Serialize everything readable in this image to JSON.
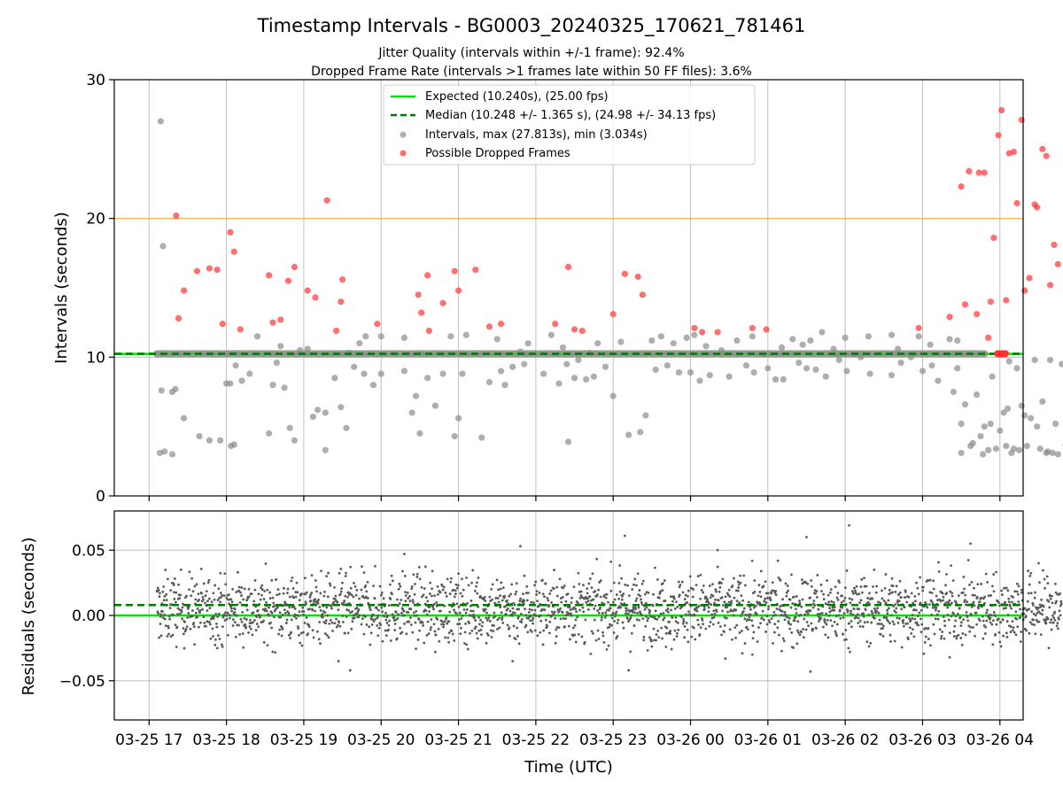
{
  "chart_data": {
    "type": "scatter",
    "title": "Timestamp Intervals - BG0003_20240325_170621_781461",
    "subtitle_lines": [
      "Jitter Quality (intervals within +/-1 frame): 92.4%",
      "Dropped Frame Rate (intervals >1 frames late within 50 FF files): 3.6%"
    ],
    "xlabel": "Time (UTC)",
    "x_tick_labels": [
      "03-25 17",
      "03-25 18",
      "03-25 19",
      "03-25 20",
      "03-25 21",
      "03-25 22",
      "03-25 23",
      "03-26 00",
      "03-26 01",
      "03-26 02",
      "03-26 03",
      "03-26 04"
    ],
    "x_range_hours": [
      16.55,
      28.3
    ],
    "colors": {
      "expected": "#00e600",
      "median": "#007700",
      "intervals": "#8c8c8c",
      "dropped": "#ff3333",
      "threshold": "#ffb84d",
      "residuals": "#5a5a5a"
    },
    "legend": {
      "placement": "top-center",
      "entries": [
        "Expected (10.240s), (25.00 fps)",
        "Median (10.248 +/- 1.365 s), (24.98 +/- 34.13 fps)",
        "Intervals, max (27.813s), min (3.034s)",
        "Possible Dropped Frames"
      ]
    },
    "top_panel": {
      "ylabel": "Intervals (seconds)",
      "ylim": [
        0,
        30
      ],
      "y_ticks": [
        "0",
        "10",
        "20",
        "30"
      ],
      "expected_line": 10.24,
      "median_line": 10.248,
      "threshold_line": 20,
      "baseline_band": {
        "x_start": 17.1,
        "x_end": 27.8,
        "y": 10.248
      },
      "intervals": [
        [
          17.15,
          27.0
        ],
        [
          17.18,
          18.0
        ],
        [
          17.16,
          7.6
        ],
        [
          17.14,
          3.1
        ],
        [
          17.2,
          3.2
        ],
        [
          17.3,
          7.5
        ],
        [
          17.34,
          7.7
        ],
        [
          17.3,
          3.0
        ],
        [
          17.45,
          5.6
        ],
        [
          17.65,
          4.3
        ],
        [
          17.78,
          4.0
        ],
        [
          17.92,
          4.0
        ],
        [
          18.0,
          8.1
        ],
        [
          18.05,
          8.1
        ],
        [
          18.06,
          3.6
        ],
        [
          18.1,
          3.7
        ],
        [
          18.12,
          9.4
        ],
        [
          18.2,
          8.3
        ],
        [
          18.3,
          8.8
        ],
        [
          18.4,
          11.5
        ],
        [
          18.55,
          4.5
        ],
        [
          18.6,
          8.0
        ],
        [
          18.65,
          9.6
        ],
        [
          18.7,
          10.8
        ],
        [
          18.75,
          7.8
        ],
        [
          18.82,
          4.9
        ],
        [
          18.88,
          4.0
        ],
        [
          18.95,
          10.5
        ],
        [
          19.05,
          10.6
        ],
        [
          19.12,
          5.7
        ],
        [
          19.18,
          6.2
        ],
        [
          19.28,
          6.0
        ],
        [
          19.28,
          3.3
        ],
        [
          19.4,
          8.5
        ],
        [
          19.48,
          6.4
        ],
        [
          19.55,
          4.9
        ],
        [
          19.58,
          10.3
        ],
        [
          19.65,
          9.3
        ],
        [
          19.72,
          11.0
        ],
        [
          19.78,
          8.8
        ],
        [
          19.8,
          11.5
        ],
        [
          19.9,
          8.0
        ],
        [
          20.0,
          11.5
        ],
        [
          20.0,
          8.8
        ],
        [
          20.3,
          11.4
        ],
        [
          20.3,
          9.0
        ],
        [
          20.4,
          6.0
        ],
        [
          20.45,
          7.2
        ],
        [
          20.5,
          4.5
        ],
        [
          20.6,
          8.5
        ],
        [
          20.7,
          6.5
        ],
        [
          20.8,
          8.8
        ],
        [
          20.9,
          11.5
        ],
        [
          20.95,
          4.3
        ],
        [
          21.0,
          5.6
        ],
        [
          21.05,
          8.8
        ],
        [
          21.1,
          11.6
        ],
        [
          21.3,
          4.2
        ],
        [
          21.4,
          8.2
        ],
        [
          21.5,
          11.3
        ],
        [
          21.55,
          9.0
        ],
        [
          21.6,
          8.0
        ],
        [
          21.7,
          9.3
        ],
        [
          21.8,
          10.4
        ],
        [
          21.85,
          9.5
        ],
        [
          21.9,
          11.0
        ],
        [
          22.1,
          8.8
        ],
        [
          22.2,
          11.6
        ],
        [
          22.3,
          8.1
        ],
        [
          22.35,
          10.7
        ],
        [
          22.4,
          9.5
        ],
        [
          22.42,
          3.9
        ],
        [
          22.5,
          8.5
        ],
        [
          22.55,
          9.8
        ],
        [
          22.65,
          8.4
        ],
        [
          22.7,
          10.3
        ],
        [
          22.75,
          8.6
        ],
        [
          22.8,
          11.0
        ],
        [
          22.9,
          9.3
        ],
        [
          23.0,
          7.2
        ],
        [
          23.1,
          11.1
        ],
        [
          23.2,
          4.4
        ],
        [
          23.35,
          4.6
        ],
        [
          23.42,
          5.8
        ],
        [
          23.5,
          11.2
        ],
        [
          23.55,
          9.1
        ],
        [
          23.62,
          11.5
        ],
        [
          23.7,
          9.4
        ],
        [
          23.78,
          11.0
        ],
        [
          23.85,
          8.9
        ],
        [
          23.95,
          11.4
        ],
        [
          24.0,
          8.9
        ],
        [
          24.05,
          11.6
        ],
        [
          24.12,
          8.3
        ],
        [
          24.2,
          10.8
        ],
        [
          24.25,
          8.7
        ],
        [
          24.4,
          10.5
        ],
        [
          24.5,
          8.6
        ],
        [
          24.6,
          11.2
        ],
        [
          24.72,
          9.4
        ],
        [
          24.8,
          11.5
        ],
        [
          24.82,
          8.9
        ],
        [
          24.95,
          10.2
        ],
        [
          25.0,
          9.2
        ],
        [
          25.1,
          8.4
        ],
        [
          25.18,
          10.7
        ],
        [
          25.2,
          8.4
        ],
        [
          25.32,
          11.3
        ],
        [
          25.4,
          9.6
        ],
        [
          25.45,
          10.9
        ],
        [
          25.5,
          9.2
        ],
        [
          25.55,
          11.2
        ],
        [
          25.62,
          9.1
        ],
        [
          25.7,
          11.8
        ],
        [
          25.75,
          8.6
        ],
        [
          25.85,
          10.6
        ],
        [
          25.92,
          9.8
        ],
        [
          26.0,
          11.4
        ],
        [
          26.02,
          9.0
        ],
        [
          26.12,
          10.2
        ],
        [
          26.2,
          10.0
        ],
        [
          26.3,
          11.5
        ],
        [
          26.32,
          8.8
        ],
        [
          26.6,
          11.6
        ],
        [
          26.6,
          8.7
        ],
        [
          26.68,
          10.6
        ],
        [
          26.72,
          9.6
        ],
        [
          26.85,
          10.0
        ],
        [
          26.95,
          11.5
        ],
        [
          27.0,
          9.0
        ],
        [
          27.1,
          10.9
        ],
        [
          27.12,
          9.4
        ],
        [
          27.2,
          8.3
        ],
        [
          27.35,
          11.3
        ],
        [
          27.4,
          7.5
        ],
        [
          27.45,
          9.2
        ],
        [
          27.45,
          11.2
        ],
        [
          27.5,
          5.2
        ],
        [
          27.5,
          3.1
        ],
        [
          27.55,
          6.6
        ],
        [
          27.62,
          3.6
        ],
        [
          27.65,
          3.8
        ],
        [
          27.7,
          7.3
        ],
        [
          27.75,
          4.3
        ],
        [
          27.78,
          3.0
        ],
        [
          27.8,
          5.0
        ],
        [
          27.85,
          3.3
        ],
        [
          27.88,
          5.2
        ],
        [
          27.9,
          8.6
        ],
        [
          27.95,
          3.4
        ],
        [
          28.0,
          4.7
        ],
        [
          28.05,
          6.0
        ],
        [
          28.08,
          3.6
        ],
        [
          28.1,
          6.3
        ],
        [
          28.12,
          9.7
        ],
        [
          28.15,
          3.1
        ],
        [
          28.18,
          3.4
        ],
        [
          28.22,
          9.2
        ],
        [
          28.25,
          3.3
        ],
        [
          28.28,
          6.5
        ],
        [
          28.32,
          5.8
        ],
        [
          28.35,
          3.6
        ],
        [
          28.4,
          5.6
        ],
        [
          28.45,
          9.8
        ],
        [
          28.48,
          5.0
        ],
        [
          28.52,
          3.4
        ],
        [
          28.55,
          6.8
        ],
        [
          28.6,
          3.1
        ],
        [
          28.62,
          3.2
        ],
        [
          28.65,
          9.8
        ],
        [
          28.68,
          3.1
        ],
        [
          28.72,
          5.2
        ],
        [
          28.75,
          3.0
        ],
        [
          28.8,
          9.5
        ],
        [
          28.85,
          3.7
        ]
      ],
      "dropped_frames": [
        [
          17.35,
          20.2
        ],
        [
          17.38,
          12.8
        ],
        [
          17.45,
          14.8
        ],
        [
          17.62,
          16.2
        ],
        [
          17.78,
          16.4
        ],
        [
          17.88,
          16.3
        ],
        [
          17.95,
          12.4
        ],
        [
          18.05,
          19.0
        ],
        [
          18.1,
          17.6
        ],
        [
          18.18,
          12.0
        ],
        [
          18.55,
          15.9
        ],
        [
          18.6,
          12.5
        ],
        [
          18.7,
          12.7
        ],
        [
          18.8,
          15.5
        ],
        [
          18.88,
          16.5
        ],
        [
          19.05,
          14.8
        ],
        [
          19.15,
          14.3
        ],
        [
          19.3,
          21.3
        ],
        [
          19.42,
          11.9
        ],
        [
          19.48,
          14.0
        ],
        [
          19.5,
          15.6
        ],
        [
          19.95,
          12.4
        ],
        [
          20.48,
          14.5
        ],
        [
          20.52,
          13.2
        ],
        [
          20.6,
          15.9
        ],
        [
          20.62,
          11.9
        ],
        [
          20.8,
          13.9
        ],
        [
          20.95,
          16.2
        ],
        [
          21.0,
          14.8
        ],
        [
          21.22,
          16.3
        ],
        [
          21.4,
          12.2
        ],
        [
          21.55,
          12.4
        ],
        [
          22.25,
          12.4
        ],
        [
          22.42,
          16.5
        ],
        [
          22.5,
          12.0
        ],
        [
          22.6,
          11.9
        ],
        [
          23.0,
          13.1
        ],
        [
          23.15,
          16.0
        ],
        [
          23.32,
          15.8
        ],
        [
          23.38,
          14.5
        ],
        [
          24.05,
          12.1
        ],
        [
          24.15,
          11.8
        ],
        [
          24.35,
          11.8
        ],
        [
          24.8,
          12.1
        ],
        [
          24.98,
          12.0
        ],
        [
          26.95,
          12.1
        ],
        [
          27.35,
          12.9
        ],
        [
          27.5,
          22.3
        ],
        [
          27.55,
          13.8
        ],
        [
          27.6,
          23.4
        ],
        [
          27.7,
          13.1
        ],
        [
          27.73,
          23.3
        ],
        [
          27.8,
          23.3
        ],
        [
          27.85,
          11.4
        ],
        [
          27.88,
          14.0
        ],
        [
          27.92,
          18.6
        ],
        [
          27.98,
          26.0
        ],
        [
          28.02,
          27.8
        ],
        [
          28.08,
          14.1
        ],
        [
          28.12,
          24.7
        ],
        [
          28.18,
          24.8
        ],
        [
          28.22,
          21.1
        ],
        [
          28.28,
          27.1
        ],
        [
          28.32,
          14.8
        ],
        [
          28.38,
          15.7
        ],
        [
          28.45,
          21.0
        ],
        [
          28.48,
          20.8
        ],
        [
          28.55,
          25.0
        ],
        [
          28.6,
          24.5
        ],
        [
          28.65,
          15.2
        ],
        [
          28.7,
          18.1
        ],
        [
          28.75,
          16.7
        ]
      ],
      "dropped_cluster": {
        "x_start": 27.97,
        "x_end": 28.07,
        "y": 10.248
      }
    },
    "bottom_panel": {
      "ylabel": "Residuals (seconds)",
      "ylim": [
        -0.08,
        0.08
      ],
      "y_ticks": [
        "−0.05",
        "0.00",
        "0.05"
      ],
      "expected_line": 0.0,
      "median_line": 0.008,
      "residual_band": {
        "x_start": 17.1,
        "x_end": 28.8,
        "center": 0.005,
        "spread": 0.013,
        "count": 2400
      },
      "residual_outliers": [
        [
          19.45,
          -0.035
        ],
        [
          19.6,
          -0.042
        ],
        [
          20.3,
          0.047
        ],
        [
          20.7,
          -0.028
        ],
        [
          21.8,
          0.053
        ],
        [
          21.7,
          -0.035
        ],
        [
          23.15,
          0.061
        ],
        [
          23.2,
          -0.042
        ],
        [
          24.35,
          0.05
        ],
        [
          24.45,
          -0.033
        ],
        [
          24.8,
          -0.03
        ],
        [
          25.5,
          0.06
        ],
        [
          25.55,
          -0.043
        ],
        [
          26.05,
          0.069
        ],
        [
          27.35,
          -0.032
        ],
        [
          27.62,
          0.055
        ],
        [
          28.5,
          0.04
        ]
      ]
    }
  }
}
